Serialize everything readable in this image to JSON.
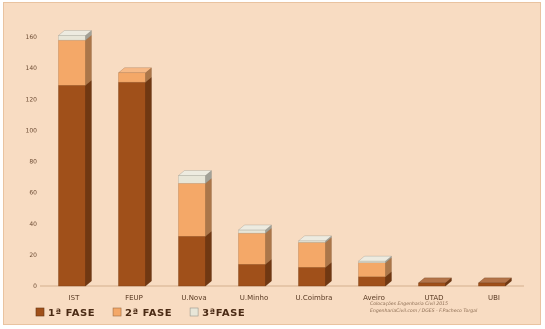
{
  "chart_data": {
    "type": "bar",
    "stacked": true,
    "style": "3d",
    "categories": [
      "IST",
      "FEUP",
      "U.Nova",
      "U.Minho",
      "U.Coimbra",
      "Aveiro",
      "UTAD",
      "UBI"
    ],
    "series": [
      {
        "name": "1ª FASE",
        "values": [
          129,
          131,
          32,
          14,
          12,
          6,
          2,
          2
        ],
        "color": "#a0501a"
      },
      {
        "name": "2ª FASE",
        "values": [
          29,
          6,
          34,
          20,
          16,
          9,
          0,
          0
        ],
        "color": "#f4a868"
      },
      {
        "name": "3ªFASE",
        "values": [
          3,
          0,
          5,
          2,
          1,
          1,
          0,
          0
        ],
        "color": "#e8e6d8"
      }
    ],
    "yticks": [
      0,
      20,
      40,
      60,
      80,
      100,
      120,
      140,
      160
    ],
    "ylim": [
      0,
      160
    ],
    "grid": false,
    "legend": "bottom-left",
    "annotation": [
      "Colocações Engenharia Civil 2015",
      "EngenhariaCivil.com / DGES - F.Pacheco Torgal"
    ]
  },
  "colors": {
    "background": "#f8dcc2",
    "axis": "#c9a07e"
  }
}
